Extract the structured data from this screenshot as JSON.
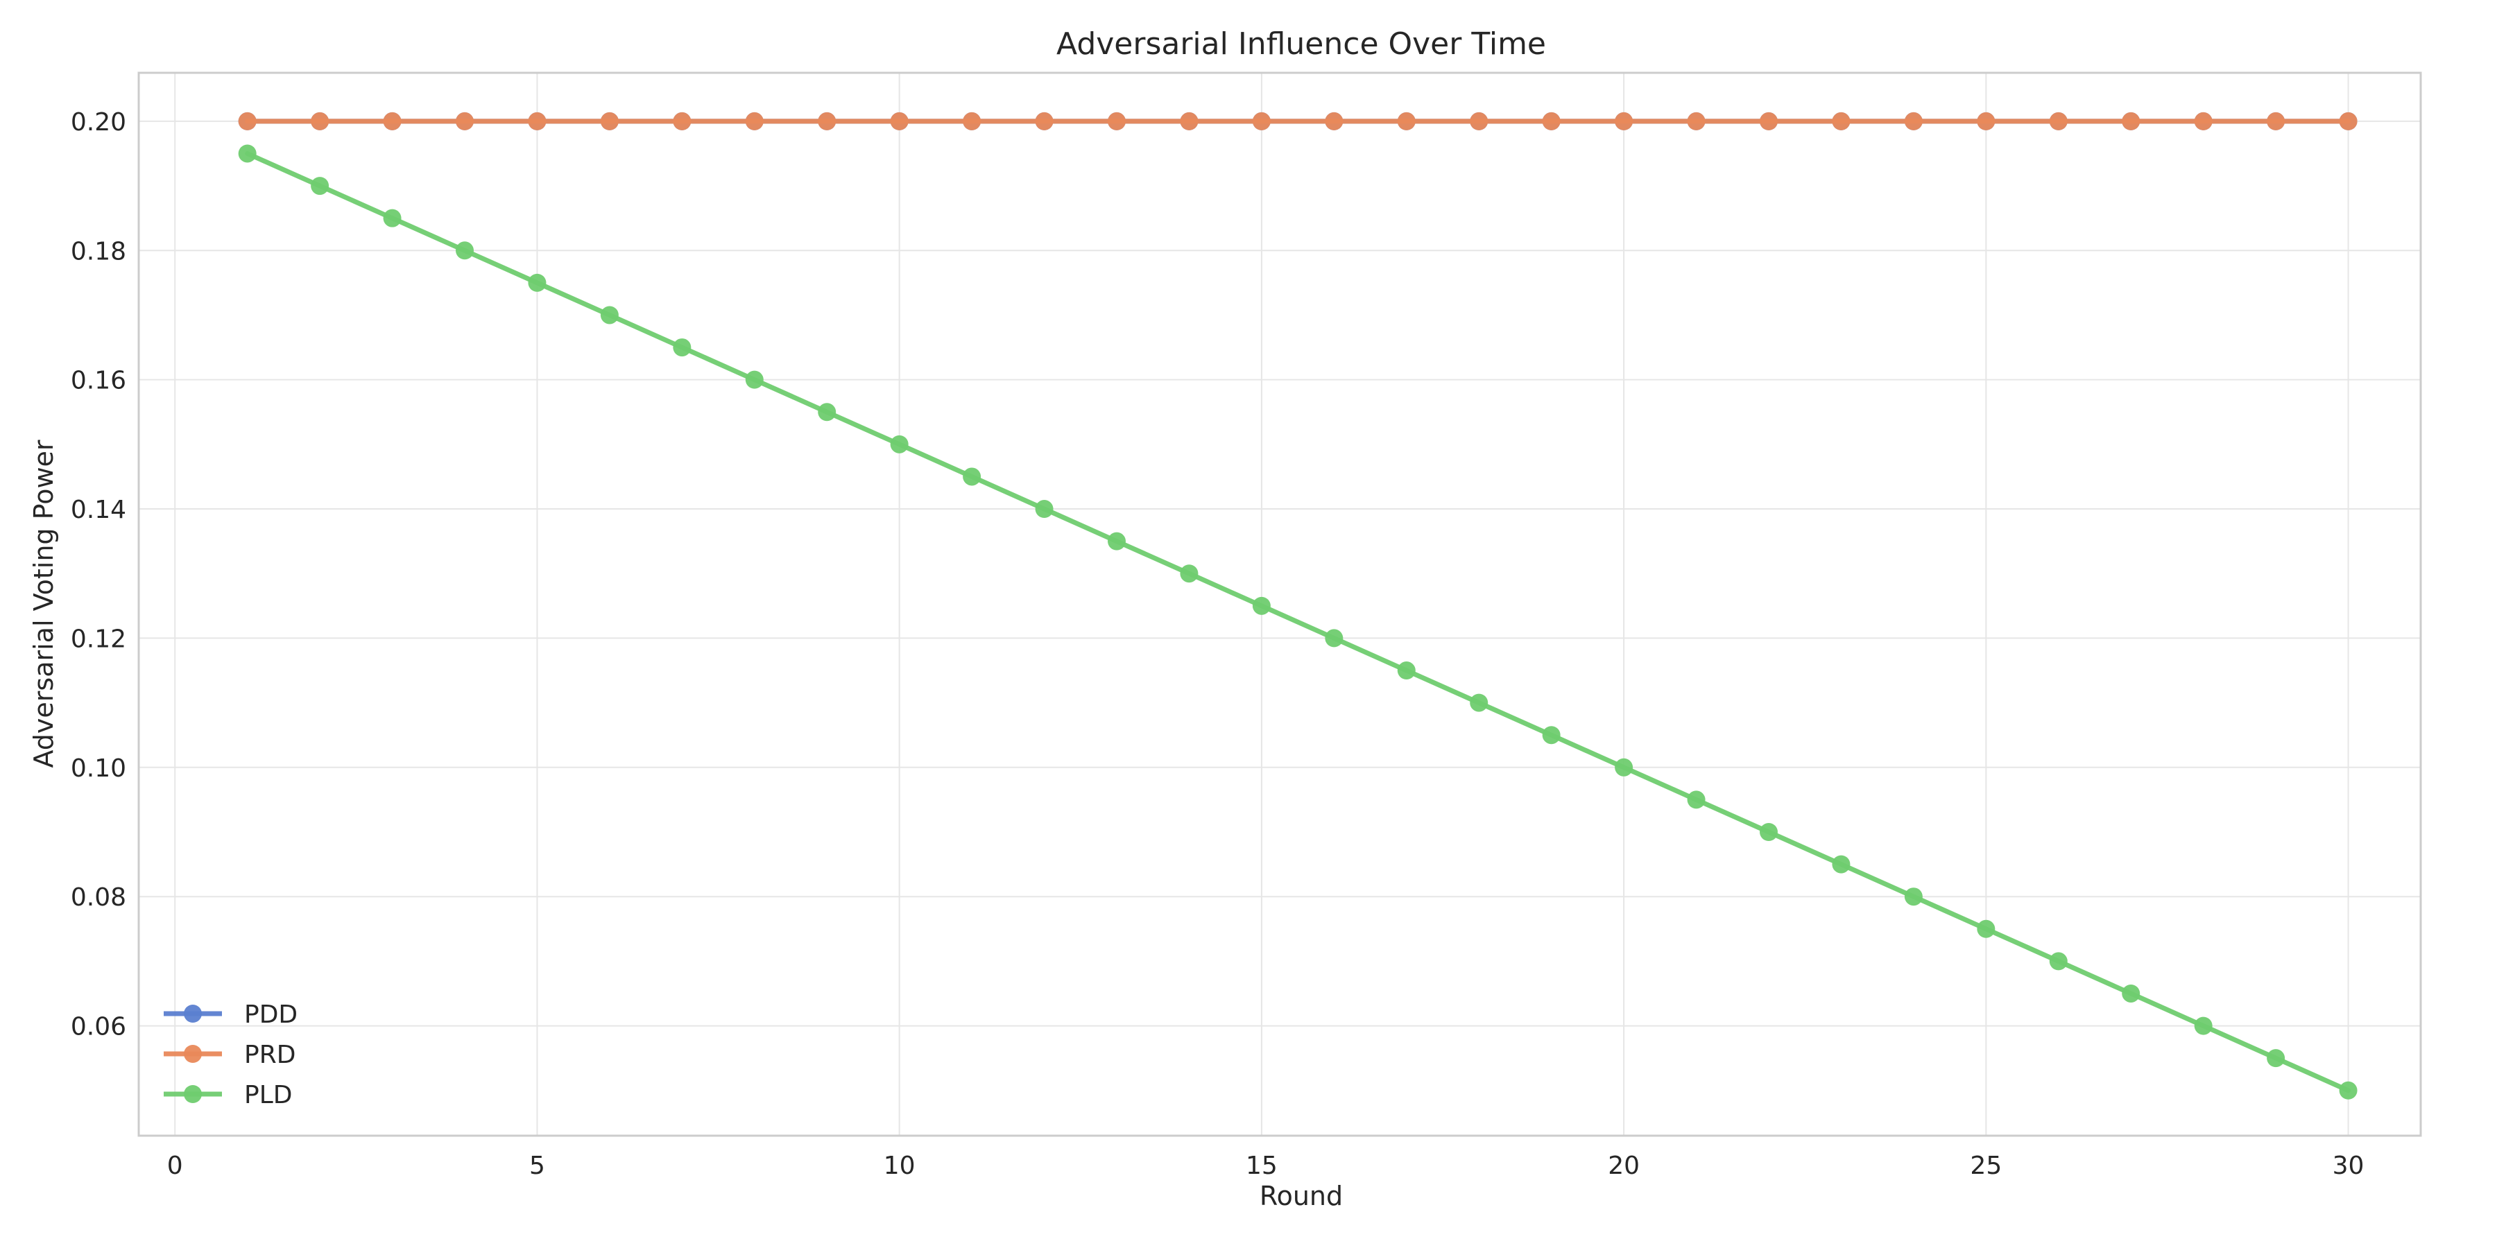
{
  "chart_data": {
    "type": "line",
    "title": "Adversarial Influence Over Time",
    "xlabel": "Round",
    "ylabel": "Adversarial Voting Power",
    "xlim": [
      -0.5,
      31
    ],
    "ylim": [
      0.043,
      0.2075
    ],
    "xticks": [
      0,
      5,
      10,
      15,
      20,
      25,
      30
    ],
    "yticks": [
      0.06,
      0.08,
      0.1,
      0.12,
      0.14,
      0.16,
      0.18,
      0.2
    ],
    "ytick_labels": [
      "0.06",
      "0.08",
      "0.10",
      "0.12",
      "0.14",
      "0.16",
      "0.18",
      "0.20"
    ],
    "grid": true,
    "legend_position": "lower-left",
    "x": [
      1,
      2,
      3,
      4,
      5,
      6,
      7,
      8,
      9,
      10,
      11,
      12,
      13,
      14,
      15,
      16,
      17,
      18,
      19,
      20,
      21,
      22,
      23,
      24,
      25,
      26,
      27,
      28,
      29,
      30
    ],
    "series": [
      {
        "name": "PDD",
        "color": "#5b7fd0",
        "values": [
          0.2,
          0.2,
          0.2,
          0.2,
          0.2,
          0.2,
          0.2,
          0.2,
          0.2,
          0.2,
          0.2,
          0.2,
          0.2,
          0.2,
          0.2,
          0.2,
          0.2,
          0.2,
          0.2,
          0.2,
          0.2,
          0.2,
          0.2,
          0.2,
          0.2,
          0.2,
          0.2,
          0.2,
          0.2,
          0.2
        ]
      },
      {
        "name": "PRD",
        "color": "#e9895a",
        "values": [
          0.2,
          0.2,
          0.2,
          0.2,
          0.2,
          0.2,
          0.2,
          0.2,
          0.2,
          0.2,
          0.2,
          0.2,
          0.2,
          0.2,
          0.2,
          0.2,
          0.2,
          0.2,
          0.2,
          0.2,
          0.2,
          0.2,
          0.2,
          0.2,
          0.2,
          0.2,
          0.2,
          0.2,
          0.2,
          0.2
        ]
      },
      {
        "name": "PLD",
        "color": "#6fcc6f",
        "values": [
          0.195,
          0.19,
          0.185,
          0.18,
          0.175,
          0.17,
          0.165,
          0.16,
          0.155,
          0.15,
          0.145,
          0.14,
          0.135,
          0.13,
          0.125,
          0.12,
          0.115,
          0.11,
          0.105,
          0.1,
          0.095,
          0.09,
          0.085,
          0.08,
          0.075,
          0.07,
          0.065,
          0.06,
          0.055,
          0.05
        ]
      }
    ]
  }
}
